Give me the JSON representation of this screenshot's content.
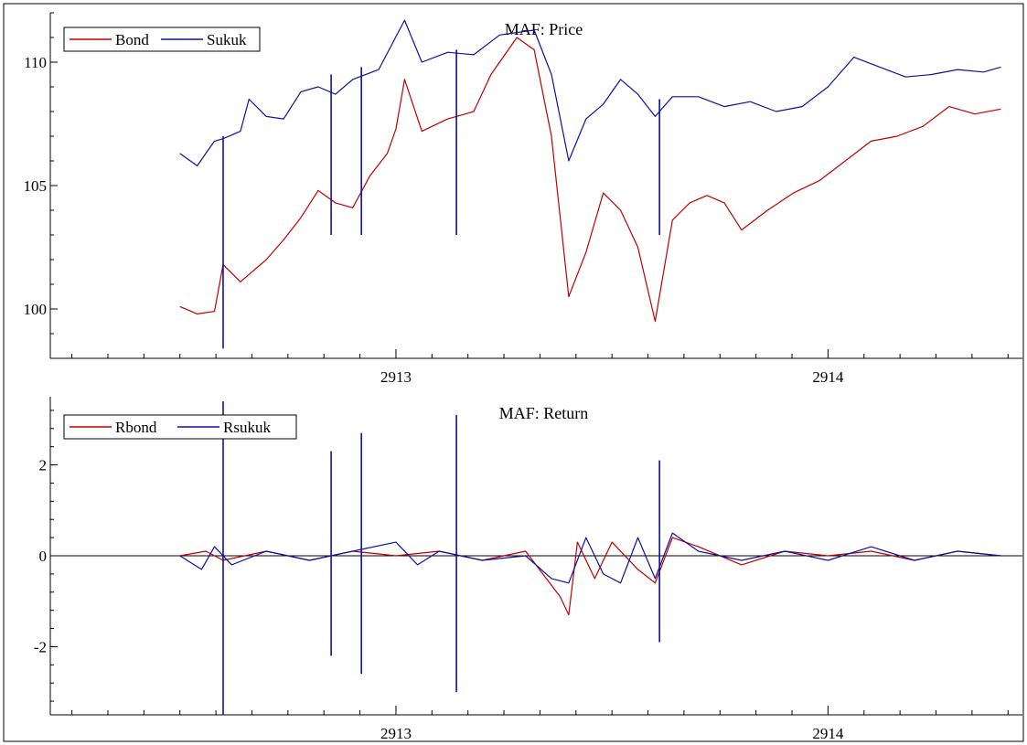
{
  "chart_data": [
    {
      "type": "line",
      "title": "MAF: Price",
      "xlabel": "",
      "ylabel": "",
      "x_ticks": [
        "2913",
        "2914"
      ],
      "y_ticks": [
        "100",
        "105",
        "110"
      ],
      "xlim": [
        2912.2,
        2914.45
      ],
      "ylim": [
        98,
        112
      ],
      "grid": false,
      "legend": "top-left",
      "series": [
        {
          "name": "Bond",
          "color": "#c00000",
          "points": [
            [
              2912.5,
              100.1
            ],
            [
              2912.54,
              99.8
            ],
            [
              2912.58,
              99.9
            ],
            [
              2912.6,
              101.8
            ],
            [
              2912.64,
              101.1
            ],
            [
              2912.7,
              102.0
            ],
            [
              2912.74,
              102.8
            ],
            [
              2912.78,
              103.7
            ],
            [
              2912.82,
              104.8
            ],
            [
              2912.86,
              104.3
            ],
            [
              2912.9,
              104.1
            ],
            [
              2912.94,
              105.4
            ],
            [
              2912.98,
              106.3
            ],
            [
              2913.0,
              107.3
            ],
            [
              2913.02,
              109.3
            ],
            [
              2913.06,
              107.2
            ],
            [
              2913.12,
              107.7
            ],
            [
              2913.18,
              108.0
            ],
            [
              2913.22,
              109.5
            ],
            [
              2913.28,
              111.0
            ],
            [
              2913.32,
              110.5
            ],
            [
              2913.36,
              107.0
            ],
            [
              2913.4,
              100.5
            ],
            [
              2913.44,
              102.3
            ],
            [
              2913.48,
              104.7
            ],
            [
              2913.52,
              104.0
            ],
            [
              2913.56,
              102.5
            ],
            [
              2913.6,
              99.5
            ],
            [
              2913.64,
              103.6
            ],
            [
              2913.68,
              104.3
            ],
            [
              2913.72,
              104.6
            ],
            [
              2913.76,
              104.3
            ],
            [
              2913.8,
              103.2
            ],
            [
              2913.86,
              104.0
            ],
            [
              2913.92,
              104.7
            ],
            [
              2913.98,
              105.2
            ],
            [
              2914.04,
              106.0
            ],
            [
              2914.1,
              106.8
            ],
            [
              2914.16,
              107.0
            ],
            [
              2914.22,
              107.4
            ],
            [
              2914.28,
              108.2
            ],
            [
              2914.34,
              107.9
            ],
            [
              2914.4,
              108.1
            ]
          ]
        },
        {
          "name": "Sukuk",
          "color": "#1010a0",
          "points": [
            [
              2912.5,
              106.3
            ],
            [
              2912.54,
              105.8
            ],
            [
              2912.58,
              106.8
            ],
            [
              2912.6,
              106.9
            ],
            [
              2912.64,
              107.2
            ],
            [
              2912.66,
              108.5
            ],
            [
              2912.7,
              107.8
            ],
            [
              2912.74,
              107.7
            ],
            [
              2912.78,
              108.8
            ],
            [
              2912.82,
              109.0
            ],
            [
              2912.86,
              108.7
            ],
            [
              2912.9,
              109.3
            ],
            [
              2912.96,
              109.7
            ],
            [
              2913.02,
              111.7
            ],
            [
              2913.06,
              110.0
            ],
            [
              2913.12,
              110.4
            ],
            [
              2913.18,
              110.3
            ],
            [
              2913.24,
              111.1
            ],
            [
              2913.32,
              111.3
            ],
            [
              2913.36,
              109.5
            ],
            [
              2913.4,
              106.0
            ],
            [
              2913.44,
              107.7
            ],
            [
              2913.48,
              108.3
            ],
            [
              2913.52,
              109.3
            ],
            [
              2913.56,
              108.7
            ],
            [
              2913.6,
              107.8
            ],
            [
              2913.64,
              108.6
            ],
            [
              2913.7,
              108.6
            ],
            [
              2913.76,
              108.2
            ],
            [
              2913.82,
              108.4
            ],
            [
              2913.88,
              108.0
            ],
            [
              2913.94,
              108.2
            ],
            [
              2914.0,
              109.0
            ],
            [
              2914.06,
              110.2
            ],
            [
              2914.12,
              109.8
            ],
            [
              2914.18,
              109.4
            ],
            [
              2914.24,
              109.5
            ],
            [
              2914.3,
              109.7
            ],
            [
              2914.36,
              109.6
            ],
            [
              2914.4,
              109.8
            ]
          ]
        }
      ],
      "spikes": [
        {
          "series": "Sukuk",
          "x": 2912.6,
          "low": 98.4,
          "high": 107.0
        },
        {
          "series": "Sukuk",
          "x": 2912.85,
          "low": 103.0,
          "high": 109.5
        },
        {
          "series": "Sukuk",
          "x": 2912.92,
          "low": 103.0,
          "high": 109.8
        },
        {
          "series": "Sukuk",
          "x": 2913.14,
          "low": 103.0,
          "high": 110.5
        },
        {
          "series": "Sukuk",
          "x": 2913.61,
          "low": 103.0,
          "high": 108.5
        }
      ]
    },
    {
      "type": "line",
      "title": "MAF: Return",
      "xlabel": "",
      "ylabel": "",
      "x_ticks": [
        "2913",
        "2914"
      ],
      "y_ticks": [
        "-2",
        "0",
        "2"
      ],
      "xlim": [
        2912.2,
        2914.45
      ],
      "ylim": [
        -3.5,
        3.5
      ],
      "zero_line": true,
      "grid": false,
      "legend": "top-left",
      "series": [
        {
          "name": "Rbond",
          "color": "#c00000",
          "points": [
            [
              2912.5,
              0.0
            ],
            [
              2912.56,
              0.1
            ],
            [
              2912.6,
              -0.1
            ],
            [
              2912.7,
              0.1
            ],
            [
              2912.8,
              -0.1
            ],
            [
              2912.9,
              0.1
            ],
            [
              2913.0,
              0.0
            ],
            [
              2913.1,
              0.1
            ],
            [
              2913.2,
              -0.1
            ],
            [
              2913.3,
              0.1
            ],
            [
              2913.34,
              -0.4
            ],
            [
              2913.38,
              -0.9
            ],
            [
              2913.4,
              -1.3
            ],
            [
              2913.42,
              0.3
            ],
            [
              2913.46,
              -0.5
            ],
            [
              2913.5,
              0.3
            ],
            [
              2913.56,
              -0.3
            ],
            [
              2913.6,
              -0.6
            ],
            [
              2913.64,
              0.4
            ],
            [
              2913.7,
              0.2
            ],
            [
              2913.8,
              -0.2
            ],
            [
              2913.9,
              0.1
            ],
            [
              2914.0,
              0.0
            ],
            [
              2914.1,
              0.1
            ],
            [
              2914.2,
              -0.1
            ],
            [
              2914.3,
              0.1
            ],
            [
              2914.4,
              0.0
            ]
          ]
        },
        {
          "name": "Rsukuk",
          "color": "#1010a0",
          "points": [
            [
              2912.5,
              0.0
            ],
            [
              2912.55,
              -0.3
            ],
            [
              2912.58,
              0.2
            ],
            [
              2912.62,
              -0.2
            ],
            [
              2912.7,
              0.1
            ],
            [
              2912.8,
              -0.1
            ],
            [
              2912.9,
              0.1
            ],
            [
              2913.0,
              0.3
            ],
            [
              2913.05,
              -0.2
            ],
            [
              2913.1,
              0.1
            ],
            [
              2913.2,
              -0.1
            ],
            [
              2913.3,
              0.0
            ],
            [
              2913.36,
              -0.5
            ],
            [
              2913.4,
              -0.6
            ],
            [
              2913.44,
              0.4
            ],
            [
              2913.48,
              -0.4
            ],
            [
              2913.52,
              -0.6
            ],
            [
              2913.56,
              0.4
            ],
            [
              2913.6,
              -0.5
            ],
            [
              2913.64,
              0.5
            ],
            [
              2913.7,
              0.1
            ],
            [
              2913.8,
              -0.1
            ],
            [
              2913.9,
              0.1
            ],
            [
              2914.0,
              -0.1
            ],
            [
              2914.1,
              0.2
            ],
            [
              2914.2,
              -0.1
            ],
            [
              2914.3,
              0.1
            ],
            [
              2914.4,
              0.0
            ]
          ]
        }
      ],
      "spikes": [
        {
          "series": "Rsukuk",
          "x": 2912.6,
          "low": -3.5,
          "high": 3.4
        },
        {
          "series": "Rsukuk",
          "x": 2912.85,
          "low": -2.2,
          "high": 2.3
        },
        {
          "series": "Rsukuk",
          "x": 2912.92,
          "low": -2.6,
          "high": 2.7
        },
        {
          "series": "Rsukuk",
          "x": 2913.14,
          "low": -3.0,
          "high": 3.1
        },
        {
          "series": "Rsukuk",
          "x": 2913.61,
          "low": -1.9,
          "high": 2.1
        }
      ]
    }
  ]
}
